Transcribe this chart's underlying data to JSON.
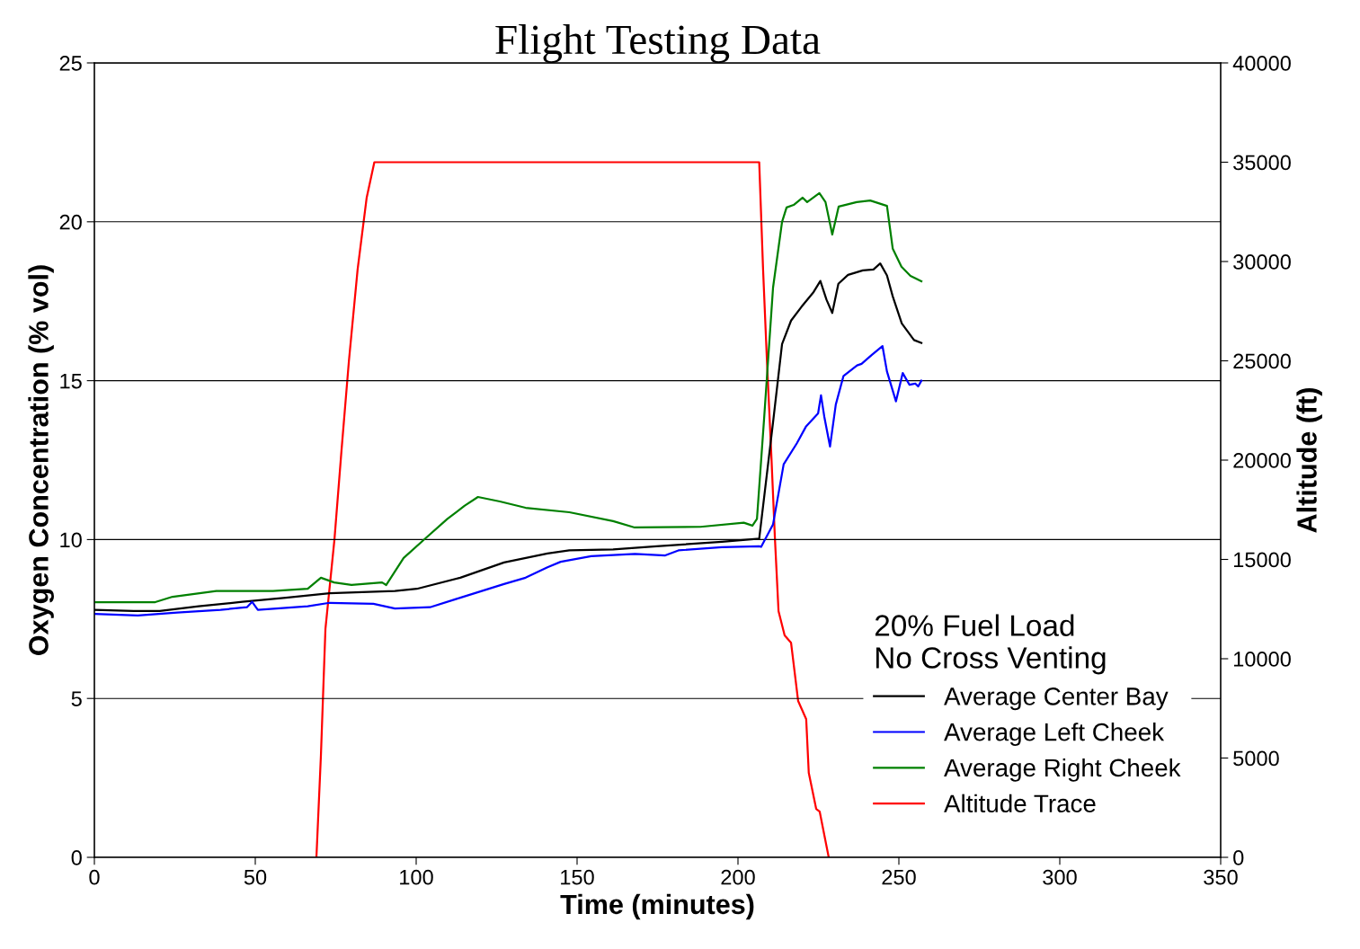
{
  "chart_data": {
    "type": "line",
    "title": "Flight Testing Data",
    "xlabel": "Time (minutes)",
    "ylabel": "Oxygen Concentration (% vol)",
    "y2label": "Altitude (ft)",
    "legend_title": "20% Fuel Load\nNo Cross Venting",
    "legend": "bottom right",
    "grid": "y",
    "marker": "none",
    "line_style": "solid",
    "xlim": [
      0,
      350
    ],
    "xticks": [
      0,
      50,
      100,
      150,
      200,
      250,
      300,
      350
    ],
    "ylim": [
      0,
      25
    ],
    "yticks": [
      0,
      5,
      10,
      15,
      20,
      25
    ],
    "y2lim": [
      0,
      40000
    ],
    "y2ticks": [
      0,
      5000,
      10000,
      15000,
      20000,
      25000,
      30000,
      35000,
      40000
    ],
    "series": [
      {
        "name": "Average Center Bay",
        "color": "#000000",
        "x": [
          0,
          12.2,
          20.3,
          32.4,
          46,
          59.5,
          73.1,
          93.4,
          100.2,
          113.7,
          127.3,
          140.8,
          147.6,
          161.2,
          174.7,
          195,
          206.6,
          210.9,
          213.7,
          216.5,
          219.7,
          223.5,
          225.6,
          227.5,
          229.3,
          231.2,
          234.2,
          238.8,
          242.1,
          244.2,
          246.3,
          248.1,
          250.9,
          254.7,
          257
        ],
        "values": [
          7.79,
          7.75,
          7.75,
          7.9,
          8.04,
          8.17,
          8.31,
          8.38,
          8.45,
          8.8,
          9.28,
          9.56,
          9.66,
          9.69,
          9.79,
          9.93,
          10.03,
          13.69,
          16.15,
          16.89,
          17.32,
          17.79,
          18.14,
          17.55,
          17.13,
          18.05,
          18.33,
          18.47,
          18.5,
          18.69,
          18.31,
          17.65,
          16.8,
          16.28,
          16.19
        ]
      },
      {
        "name": "Average Left Cheek",
        "color": "#0000ff",
        "x": [
          0,
          13.5,
          25.7,
          39.2,
          47.4,
          49,
          50.8,
          66.3,
          73.1,
          86.7,
          93.4,
          104.3,
          113.7,
          127.3,
          134,
          140.8,
          144.9,
          154.4,
          168,
          177.4,
          181.5,
          195,
          206.6,
          207.2,
          210.9,
          214.2,
          218.3,
          221.1,
          224.9,
          225.8,
          226.8,
          228.6,
          230.4,
          232.8,
          237,
          238.4,
          241.6,
          244.9,
          246.3,
          249.1,
          251.2,
          253.3,
          255.1,
          256,
          257
        ],
        "values": [
          7.66,
          7.61,
          7.7,
          7.79,
          7.87,
          8.04,
          7.79,
          7.9,
          8.01,
          7.98,
          7.83,
          7.87,
          8.17,
          8.6,
          8.8,
          9.13,
          9.3,
          9.48,
          9.55,
          9.5,
          9.66,
          9.76,
          9.79,
          9.77,
          10.48,
          12.37,
          13.03,
          13.55,
          13.97,
          14.54,
          13.88,
          12.93,
          14.25,
          15.15,
          15.48,
          15.53,
          15.81,
          16.09,
          15.29,
          14.35,
          15.24,
          14.87,
          14.91,
          14.82,
          15.0
        ]
      },
      {
        "name": "Average Right Cheek",
        "color": "#008000",
        "x": [
          0,
          18.9,
          24.3,
          37.9,
          55.5,
          66.3,
          70.4,
          74.5,
          79.9,
          89.4,
          90.7,
          96.1,
          102.9,
          109.7,
          115,
          119.2,
          126,
          134,
          147.6,
          161.2,
          167.9,
          188.3,
          201.8,
          204.5,
          205.9,
          208.1,
          210.9,
          213.7,
          215.1,
          217.3,
          220.1,
          221.5,
          225.3,
          227.2,
          229.3,
          231.3,
          236.9,
          241.1,
          246.3,
          248.1,
          250.8,
          253.6,
          257
        ],
        "values": [
          8.03,
          8.03,
          8.2,
          8.38,
          8.38,
          8.45,
          8.8,
          8.65,
          8.57,
          8.65,
          8.57,
          9.42,
          10.04,
          10.65,
          11.06,
          11.34,
          11.2,
          11.0,
          10.86,
          10.58,
          10.38,
          10.4,
          10.53,
          10.44,
          10.65,
          13.78,
          17.93,
          20.0,
          20.45,
          20.53,
          20.76,
          20.62,
          20.9,
          20.62,
          19.6,
          20.48,
          20.62,
          20.67,
          20.5,
          19.15,
          18.59,
          18.3,
          18.13
        ]
      },
      {
        "name": "Altitude Trace",
        "color": "#ff0000",
        "axis": "y2",
        "x": [
          69,
          70.4,
          71.8,
          74.6,
          76.8,
          79.1,
          81.8,
          84.6,
          87,
          206.6,
          207.8,
          209,
          210.3,
          211.5,
          212.6,
          214.5,
          216.5,
          218.7,
          221.2,
          222,
          224.3,
          225.4,
          228.2
        ],
        "values": [
          0,
          5150,
          11500,
          16000,
          20500,
          25000,
          29600,
          33200,
          35000,
          35000,
          29600,
          25000,
          20500,
          16000,
          12400,
          11180,
          10800,
          7870,
          6960,
          4250,
          2440,
          2300,
          0
        ]
      }
    ]
  }
}
